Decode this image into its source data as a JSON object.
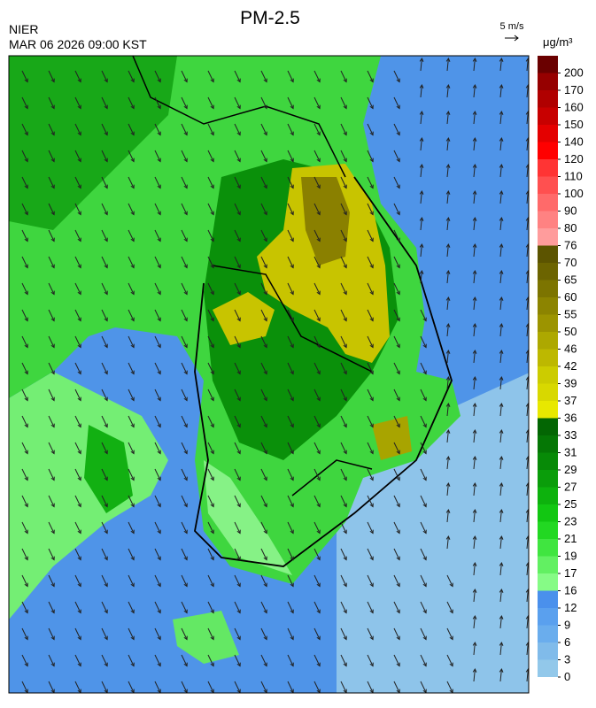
{
  "header": {
    "agency": "NIER",
    "timestamp": "MAR 06 2026 09:00 KST",
    "title": "PM-2.5",
    "wind_scale": "5 m/s"
  },
  "colorbar": {
    "units": "μg/m³",
    "levels": [
      0,
      3,
      6,
      9,
      12,
      16,
      17,
      19,
      21,
      23,
      25,
      27,
      29,
      31,
      33,
      36,
      37,
      39,
      42,
      46,
      50,
      55,
      60,
      65,
      70,
      76,
      80,
      90,
      100,
      110,
      120,
      140,
      150,
      160,
      170,
      200
    ],
    "colors": [
      "#92c8ea",
      "#80bbea",
      "#6aaded",
      "#5aa0ee",
      "#4a90ec",
      "#86fb86",
      "#62f062",
      "#40e540",
      "#22d822",
      "#12c712",
      "#0db20d",
      "#0a9d0a",
      "#078a07",
      "#057705",
      "#036603",
      "#e8e800",
      "#d8d800",
      "#cccc00",
      "#bdb800",
      "#ada800",
      "#9c9400",
      "#8c8400",
      "#7c7400",
      "#6c6400",
      "#5c5400",
      "#ff9c9c",
      "#ff8282",
      "#ff6a6a",
      "#ff5050",
      "#ff3434",
      "#ff0000",
      "#e40000",
      "#c80000",
      "#b00000",
      "#960000",
      "#6a0000"
    ]
  }
}
